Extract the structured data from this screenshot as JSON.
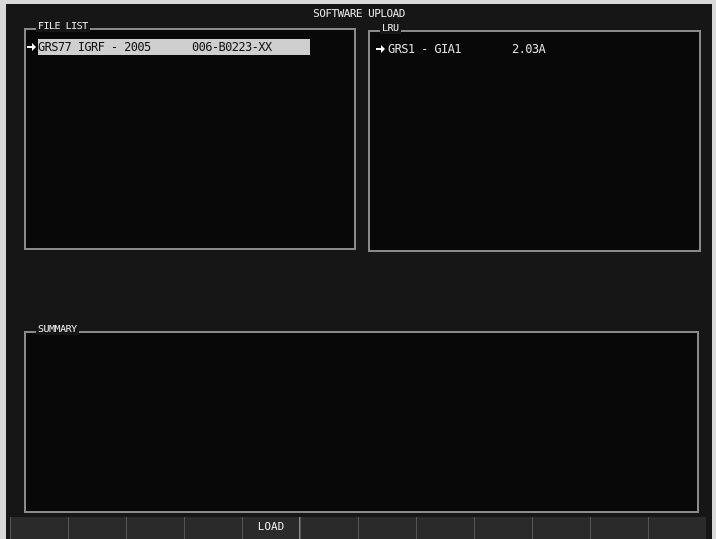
{
  "header": {
    "title": "SOFTWARE UPLOAD"
  },
  "file_list": {
    "label": "FILE LIST",
    "rows": [
      {
        "name": "GRS77 IGRF - 2005",
        "part": "006-B0223-XX"
      }
    ]
  },
  "lru": {
    "label": "LRU",
    "rows": [
      {
        "name": "GRS1 - GIA1",
        "version": "2.03A"
      }
    ]
  },
  "summary": {
    "label": "SUMMARY"
  },
  "softkeys": {
    "load": "LOAD"
  }
}
